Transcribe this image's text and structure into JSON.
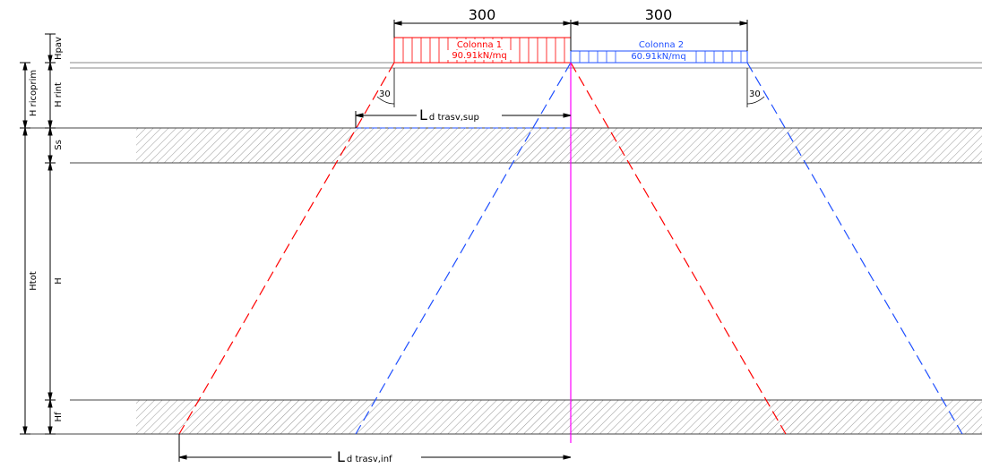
{
  "diagram": {
    "colors": {
      "red": "#ff0000",
      "blue": "#1f4fff",
      "magenta": "#ff00ff",
      "black": "#000000",
      "hatch": "#666666"
    },
    "column_1": {
      "title": "Colonna 1",
      "load": "90.91kN/mq",
      "width": "300"
    },
    "column_2": {
      "title": "Colonna 2",
      "load": "60.91kN/mq",
      "width": "300"
    },
    "angles": {
      "left": "30",
      "right": "30"
    },
    "dimension_labels": {
      "ld_sup_main": "L",
      "ld_sup_sub": "d trasv,sup",
      "ld_inf_main": "L",
      "ld_inf_sub": "d trasv,inf"
    },
    "vertical_labels": {
      "hpav": "Hpav",
      "h_rint": "H rint",
      "h_ricoprim": "H ricoprim",
      "ss": "Ss",
      "h": "H",
      "htot": "Htot",
      "hf": "Hf"
    }
  }
}
